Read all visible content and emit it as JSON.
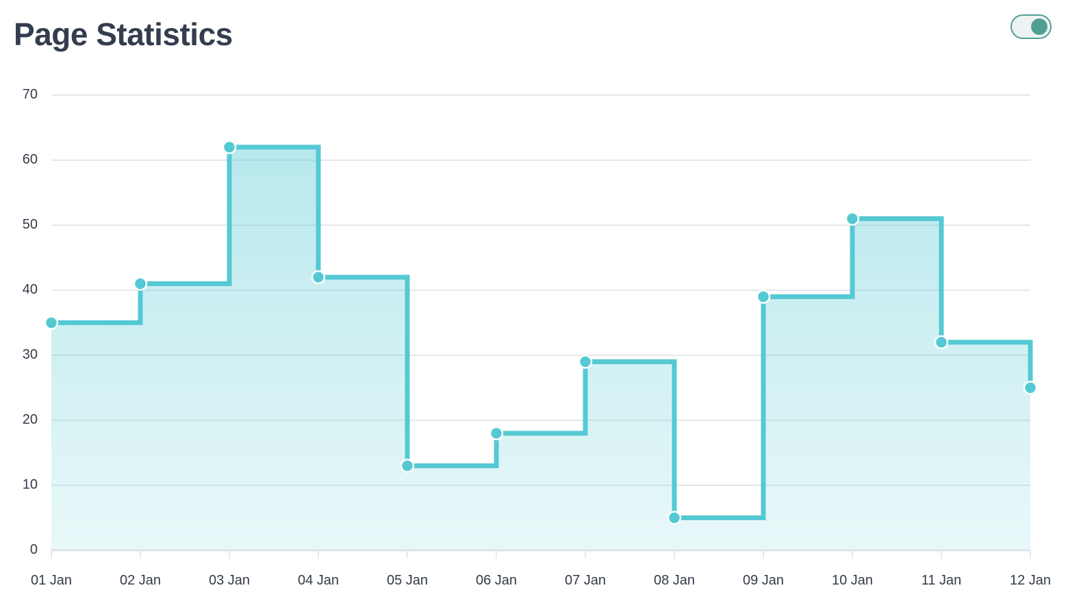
{
  "header": {
    "title": "Page Statistics"
  },
  "toggle": {
    "state": "on",
    "color": "#4f9e94"
  },
  "chart_data": {
    "type": "area",
    "interpolation": "step-after",
    "categories": [
      "01 Jan",
      "02 Jan",
      "03 Jan",
      "04 Jan",
      "05 Jan",
      "06 Jan",
      "07 Jan",
      "08 Jan",
      "09 Jan",
      "10 Jan",
      "11 Jan",
      "12 Jan"
    ],
    "series": [
      {
        "values": [
          35,
          41,
          62,
          42,
          13,
          18,
          29,
          5,
          39,
          51,
          32,
          25
        ]
      }
    ],
    "ylim": [
      0,
      70
    ],
    "yticks": [
      0,
      10,
      20,
      30,
      40,
      50,
      60,
      70
    ],
    "grid": true,
    "legend": "none",
    "colors": {
      "line": "#55c9d3",
      "fill": "#55c9d3",
      "grid": "#dcdfe3",
      "axis": "#dde2e6"
    }
  }
}
